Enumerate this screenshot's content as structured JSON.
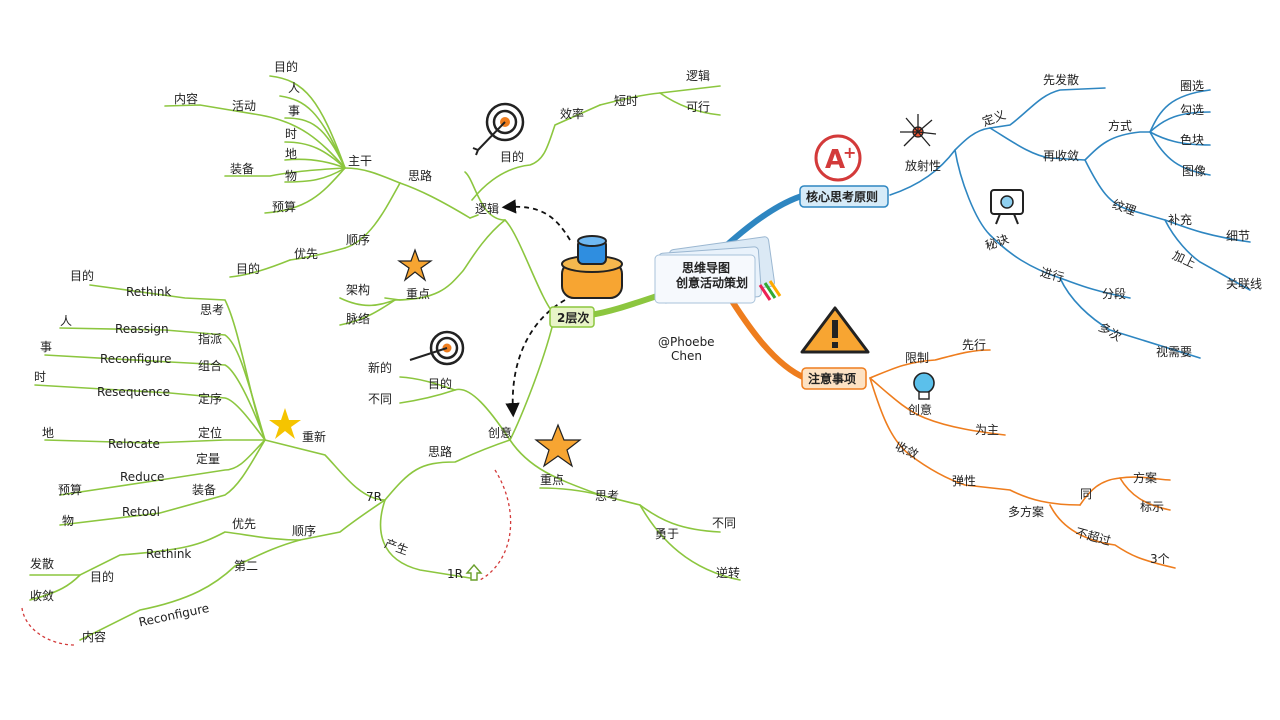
{
  "colors": {
    "green": "#8cc63f",
    "blue": "#2e86c1",
    "orange": "#ee7d1e",
    "dash_red": "#d33a3a",
    "green_box_fill": "#e8f4c7",
    "blue_box_fill": "#d6ebf8",
    "orange_box_fill": "#fde2c4"
  },
  "center": {
    "title_line1": "思维导图",
    "title_line2": "创意活动策划",
    "icon": "mindmap-document-icon"
  },
  "author": {
    "line1": "@Phoebe",
    "line2": "Chen"
  },
  "left": {
    "main": "2层次",
    "main_icon": "ink-bottle-icon",
    "logic": {
      "label": "逻辑",
      "purpose": {
        "label": "目的",
        "icon": "target-icon",
        "efficiency": "效率",
        "short_time": "短时",
        "logic": "逻辑",
        "feasible": "可行"
      },
      "thinking": {
        "label": "思路",
        "trunk": {
          "label": "主干",
          "purpose": "目的",
          "person": "人",
          "event": "事",
          "activity": "活动",
          "content": "内容",
          "time": "时",
          "place": "地",
          "thing": "物",
          "equipment": "装备",
          "budget": "预算"
        },
        "order": {
          "label": "顺序",
          "priority": "优先",
          "purpose": "目的"
        }
      },
      "focus": {
        "label": "重点",
        "icon": "star-icon",
        "structure": "架构",
        "context": "脉络"
      }
    },
    "creative": {
      "label": "创意",
      "purpose": {
        "label": "目的",
        "icon": "target-icon",
        "new": "新的",
        "different": "不同"
      },
      "thinking": {
        "label": "思路",
        "r7": "7R",
        "renew": {
          "label": "重新",
          "icon": "star-icon",
          "items": [
            {
              "left": "目的",
              "en": "Rethink",
              "cn": "思考"
            },
            {
              "left": "人",
              "en": "Reassign",
              "cn": "指派"
            },
            {
              "left": "事",
              "en": "Reconfigure",
              "cn": "组合"
            },
            {
              "left": "时",
              "en": "Resequence",
              "cn": "定序"
            },
            {
              "left": "地",
              "en": "Relocate",
              "cn": "定位"
            },
            {
              "left": "预算",
              "en": "Reduce",
              "cn": "定量"
            },
            {
              "left": "物",
              "en": "Retool",
              "cn": "装备"
            }
          ]
        },
        "order": {
          "label": "顺序",
          "priority": "优先",
          "rethink": "Rethink",
          "purpose": "目的",
          "diverge": "发散",
          "converge": "收敛",
          "second": "第二",
          "reconfigure": "Reconfigure",
          "content": "内容"
        },
        "produce": {
          "label": "产生",
          "r1": "1R",
          "icon": "up-arrow-icon"
        }
      },
      "focus": {
        "label": "重点",
        "icon": "star-icon",
        "thinking": "思考",
        "dare": "勇于",
        "different": "不同",
        "reverse": "逆转"
      }
    }
  },
  "right": {
    "core": {
      "label": "核心思考原则",
      "icon": "a-plus-grade-icon",
      "divergent": {
        "label": "放射性",
        "icon": "radiating-dots-icon",
        "definition": {
          "label": "定义",
          "first_diverge": "先发散",
          "then_converge": "再收敛",
          "method": {
            "label": "方式",
            "items": [
              "圈选",
              "勾选",
              "色块",
              "图像"
            ]
          },
          "texture": {
            "label": "纹理",
            "supplement": "补充",
            "detail": "细节",
            "add": "加上",
            "connector": "关联线"
          }
        }
      },
      "tips": {
        "label": "秘诀",
        "icon": "monitor-eye-icon",
        "proceed": {
          "label": "进行",
          "segment": "分段",
          "multiple": "多次",
          "as_needed": "视需要"
        }
      }
    },
    "notes": {
      "label": "注意事项",
      "icon": "warning-triangle-icon",
      "limit": {
        "label": "限制",
        "first": "先行",
        "creative": "创意",
        "bulb_icon": "lightbulb-icon",
        "primary": "为主"
      },
      "converge": {
        "label": "收敛",
        "flexible": "弹性",
        "multi_plan": "多方案",
        "same": "同",
        "plan": "方案",
        "mark": "标示",
        "not_exceed": "不超过",
        "three": "3个"
      }
    }
  }
}
